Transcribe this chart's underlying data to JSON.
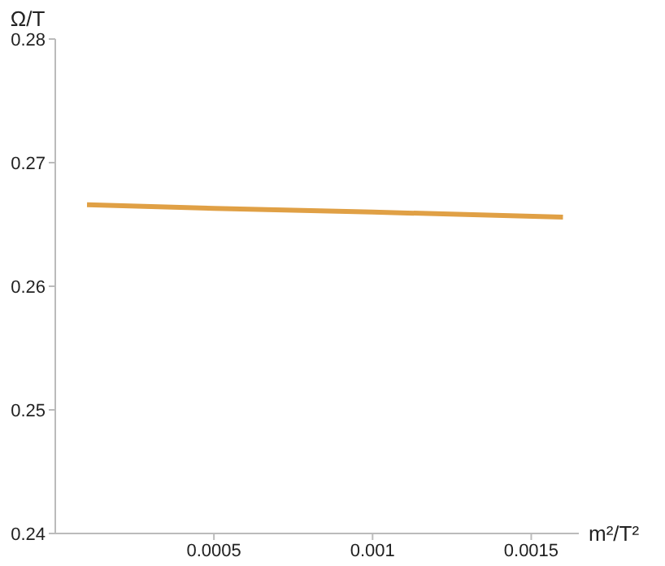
{
  "chart_data": {
    "type": "line",
    "xlabel": "m²/T²",
    "ylabel": "Ω/T",
    "x": [
      0.0001,
      0.0005,
      0.001,
      0.0016
    ],
    "series": [
      {
        "color": "#e0a045",
        "values": [
          0.2666,
          0.2663,
          0.266,
          0.2656
        ]
      }
    ],
    "xlim": [
      0,
      0.00165
    ],
    "xticks": [
      0.0005,
      0.001,
      0.0015
    ],
    "ylim": [
      0.24,
      0.28
    ],
    "yticks": [
      0.24,
      0.25,
      0.26,
      0.27,
      0.28
    ],
    "grid": false,
    "legend": false,
    "marker": "none",
    "line_style": "solid"
  }
}
